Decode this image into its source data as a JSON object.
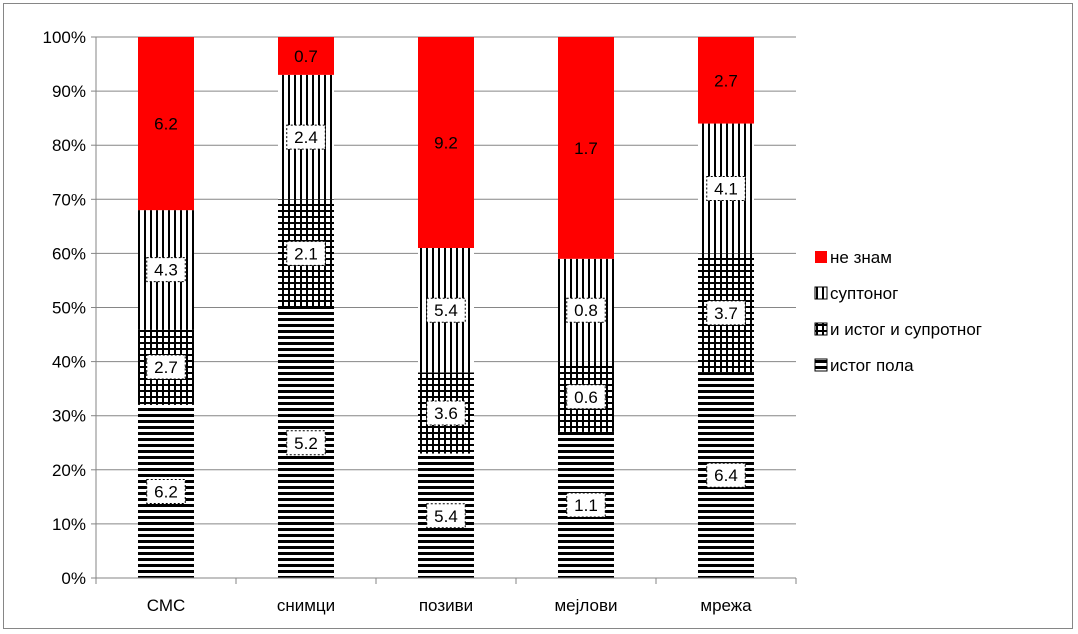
{
  "chart_data": {
    "type": "bar",
    "stacked": true,
    "normalized_percent": true,
    "categories": [
      "СМС",
      "снимци",
      "позиви",
      "мејлови",
      "мрежа"
    ],
    "series": [
      {
        "name": "истог пола",
        "pattern": "horizontal-stripes",
        "color": "#000000",
        "values": [
          32,
          50,
          23,
          27,
          38
        ],
        "labels": [
          "6.2",
          "5.2",
          "5.4",
          "1.1",
          "6.4"
        ]
      },
      {
        "name": "и истог и супротног",
        "pattern": "grid",
        "color": "#000000",
        "values": [
          14,
          20,
          15,
          13,
          22
        ],
        "labels": [
          "2.7",
          "2.1",
          "3.6",
          "0.6",
          "3.7"
        ]
      },
      {
        "name": "суптоног",
        "pattern": "vertical-stripes",
        "color": "#000000",
        "values": [
          22,
          23,
          23,
          19,
          24
        ],
        "labels": [
          "4.3",
          "2.4",
          "5.4",
          "0.8",
          "4.1"
        ]
      },
      {
        "name": "не знам",
        "pattern": "solid",
        "color": "#ff0000",
        "values": [
          32,
          7,
          39,
          41,
          16
        ],
        "labels": [
          "6.2",
          "0.7",
          "9.2",
          "1.7",
          "2.7"
        ]
      }
    ],
    "y_ticks": [
      "0%",
      "10%",
      "20%",
      "30%",
      "40%",
      "50%",
      "60%",
      "70%",
      "80%",
      "90%",
      "100%"
    ],
    "ylim": [
      0,
      100
    ],
    "grid": true,
    "legend": {
      "position": "right",
      "entries": [
        "не знам",
        "суптоног",
        "и истог и супротног",
        "истог пола"
      ]
    }
  }
}
